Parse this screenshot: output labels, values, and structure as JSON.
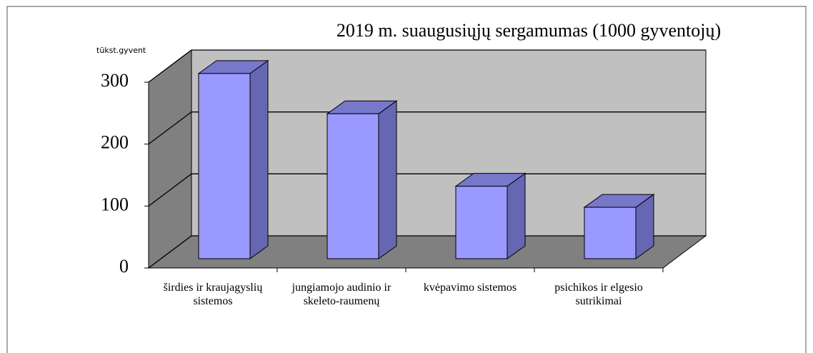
{
  "chart_data": {
    "type": "bar3d",
    "title": "2019 m. suaugusiųjų sergamumas (1000 gyventojų)",
    "y_label": "tūkst.gyvent",
    "categories": [
      "širdies ir kraujagyslių sistemos",
      "jungiamojo audinio ir skeleto-raumenų",
      "kvėpavimo sistemos",
      "psichikos ir elgesio sutrikimai"
    ],
    "values": [
      299,
      234,
      117,
      83
    ],
    "color": "#9999ff",
    "ylim": [
      0,
      300
    ],
    "yticks": [
      0,
      100,
      200,
      300
    ],
    "grid": true
  }
}
